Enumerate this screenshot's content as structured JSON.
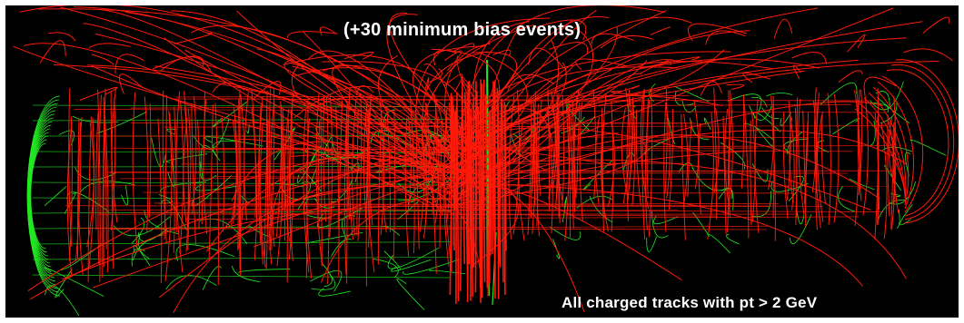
{
  "captions": {
    "top": "(+30 minimum bias events)",
    "bottom": "All charged tracks with pt > 2 GeV"
  },
  "colors": {
    "background": "#000000",
    "track_primary": "#ff1a0a",
    "track_secondary": "#22e822",
    "caption_text": "#ffffff"
  }
}
